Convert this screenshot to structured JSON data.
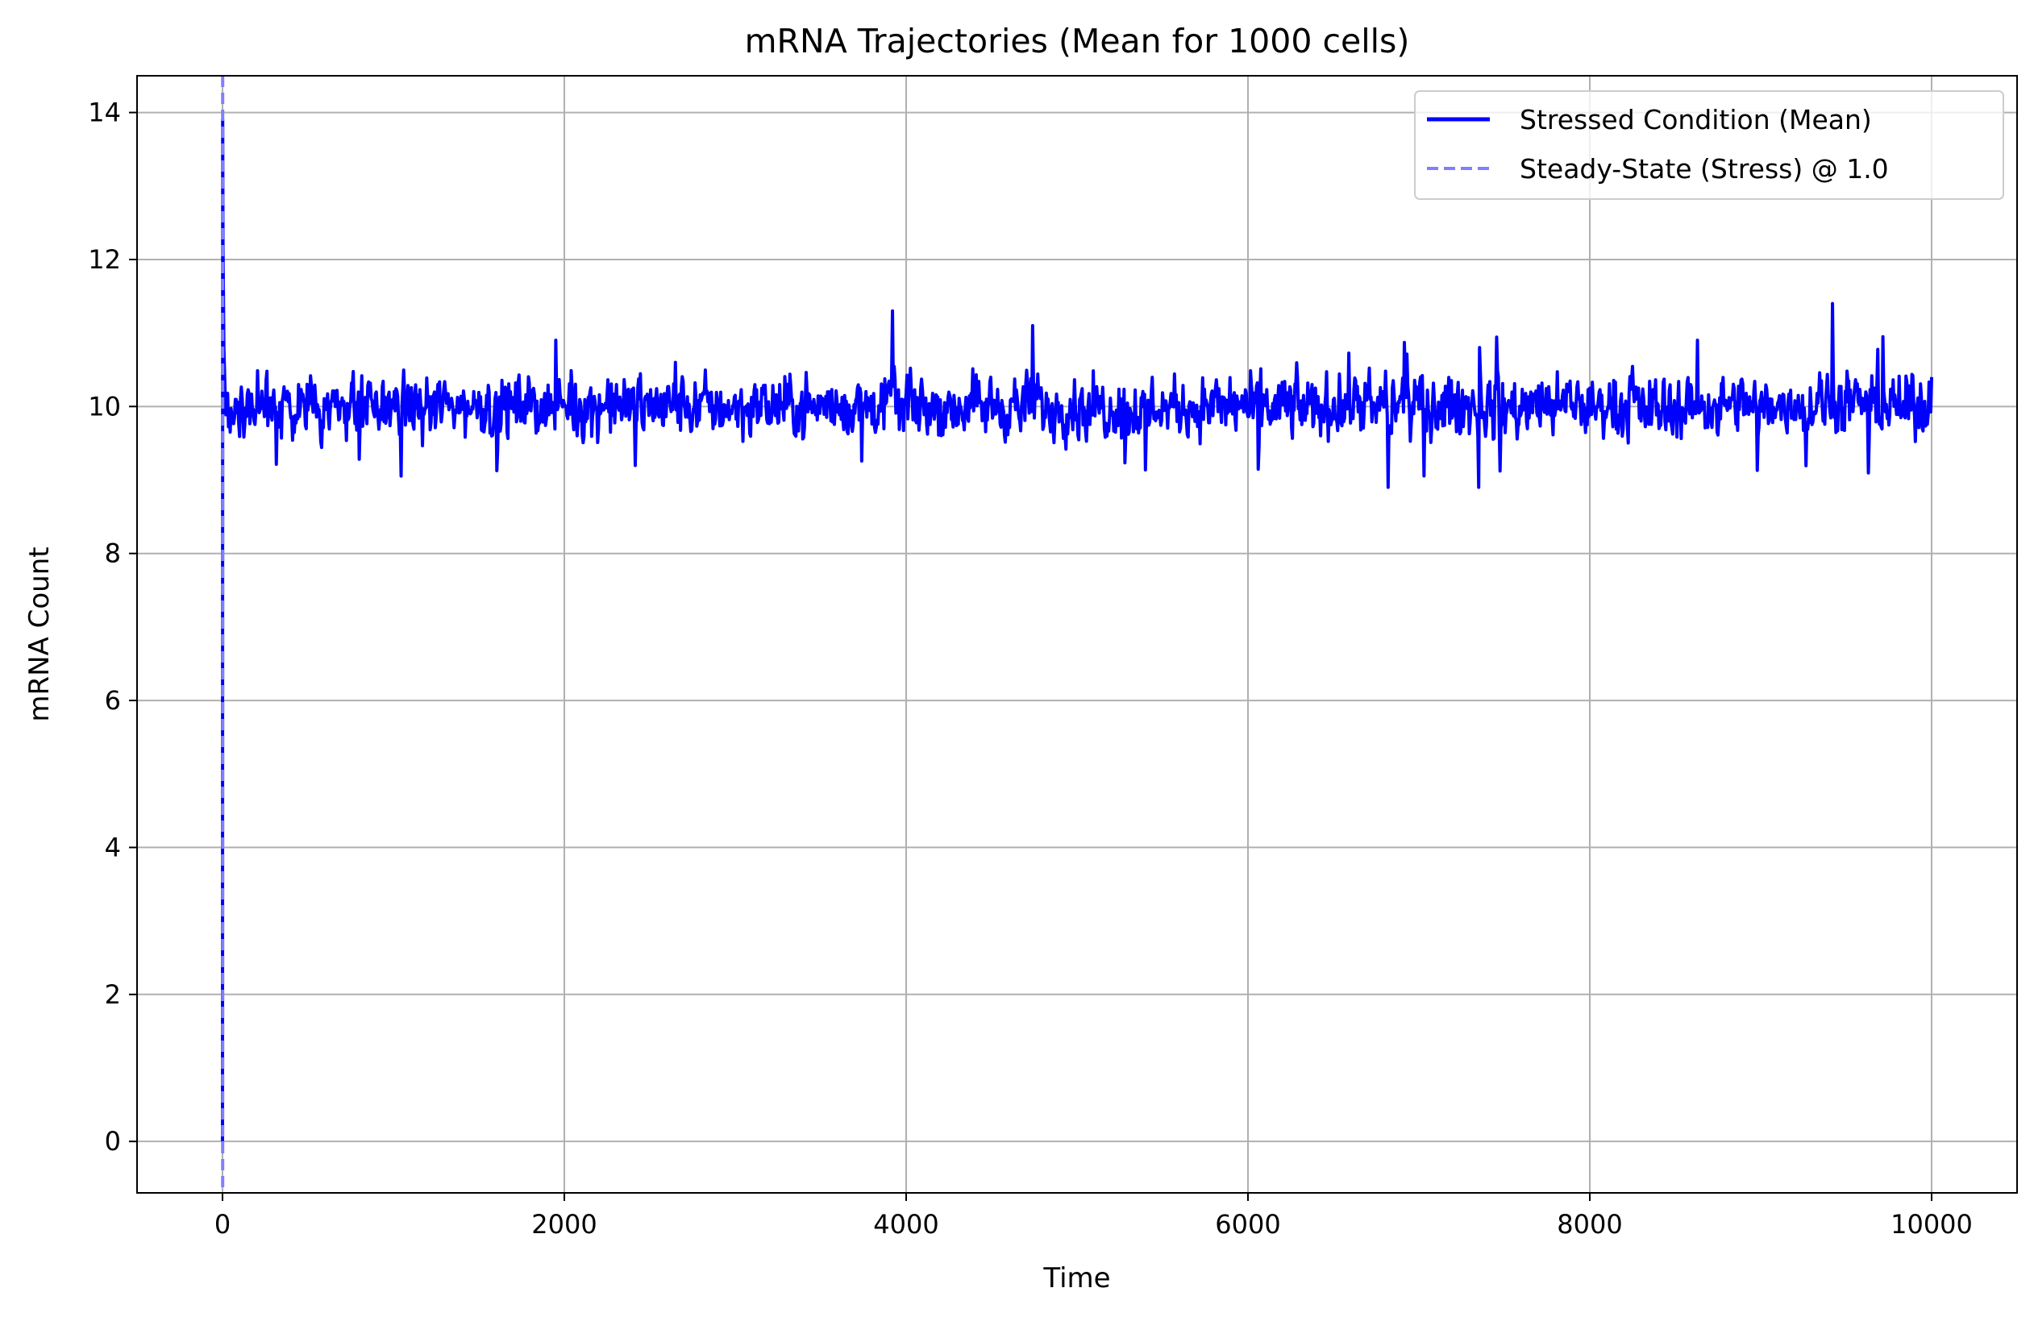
{
  "chart_data": {
    "type": "line",
    "title": "mRNA Trajectories (Mean for 1000 cells)",
    "xlabel": "Time",
    "ylabel": "mRNA Count",
    "xlim": [
      -500,
      10500
    ],
    "ylim": [
      -0.7,
      14.5
    ],
    "xticks": [
      0,
      2000,
      4000,
      6000,
      8000,
      10000
    ],
    "xtick_labels": [
      "0",
      "2000",
      "4000",
      "6000",
      "8000",
      "10000"
    ],
    "yticks": [
      0,
      2,
      4,
      6,
      8,
      10,
      12,
      14
    ],
    "ytick_labels": [
      "0",
      "2",
      "4",
      "6",
      "8",
      "10",
      "12",
      "14"
    ],
    "grid": true,
    "legend_position": "top-right",
    "series": [
      {
        "name": "Stressed Condition (Mean)",
        "color": "#0000ff",
        "style": "solid",
        "x_range": [
          0,
          10000
        ],
        "initial_value": 0,
        "initial_peak": 13.9,
        "mean": 10.0,
        "noise_amplitude": 0.35,
        "points": [
          [
            0,
            0
          ],
          [
            1,
            13.9
          ],
          [
            3,
            12.2
          ],
          [
            8,
            10.8
          ],
          [
            15,
            10.2
          ],
          [
            2650,
            10.6
          ],
          [
            3920,
            11.3
          ],
          [
            4740,
            11.1
          ],
          [
            6820,
            8.9
          ],
          [
            7350,
            8.9
          ],
          [
            9420,
            11.4
          ],
          [
            10000,
            10.4
          ]
        ]
      },
      {
        "name": "Steady-State (Stress) @ 1.0",
        "color": "#7f7fff",
        "style": "dashed",
        "orientation": "vertical",
        "x": 1.0
      }
    ]
  }
}
